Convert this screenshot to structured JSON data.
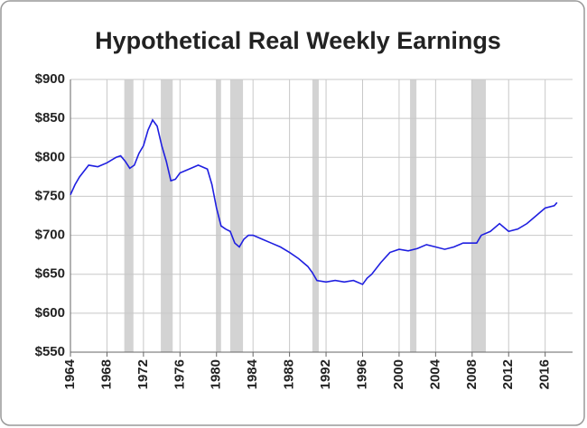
{
  "chart_data": {
    "type": "line",
    "title": "Hypothetical Real Weekly Earnings",
    "x": [
      1964,
      1964.5,
      1965,
      1966,
      1967,
      1968,
      1969,
      1969.5,
      1970,
      1970.5,
      1971,
      1971.5,
      1972,
      1972.5,
      1973,
      1973.5,
      1974,
      1974.5,
      1975,
      1975.5,
      1976,
      1977,
      1978,
      1979,
      1979.5,
      1980,
      1980.5,
      1981,
      1981.5,
      1982,
      1982.5,
      1983,
      1983.5,
      1984,
      1985,
      1986,
      1987,
      1988,
      1989,
      1990,
      1990.5,
      1991,
      1992,
      1993,
      1994,
      1995,
      1996,
      1996.5,
      1997,
      1998,
      1999,
      2000,
      2001,
      2002,
      2003,
      2004,
      2005,
      2006,
      2007,
      2008,
      2008.5,
      2009,
      2010,
      2011,
      2012,
      2013,
      2014,
      2015,
      2016,
      2017,
      2017.3
    ],
    "series": [
      {
        "color": "#1f1fe0",
        "values": [
          752,
          765,
          775,
          790,
          788,
          793,
          800,
          802,
          795,
          786,
          790,
          805,
          815,
          835,
          848,
          840,
          815,
          795,
          770,
          772,
          780,
          785,
          790,
          785,
          765,
          735,
          712,
          708,
          705,
          690,
          685,
          695,
          700,
          700,
          695,
          690,
          685,
          678,
          670,
          660,
          652,
          642,
          640,
          642,
          640,
          642,
          637,
          645,
          650,
          665,
          678,
          682,
          680,
          683,
          688,
          685,
          682,
          685,
          690,
          690,
          690,
          700,
          705,
          715,
          705,
          708,
          715,
          725,
          735,
          738,
          742
        ]
      }
    ],
    "shaded_periods": [
      [
        1969.9,
        1970.9
      ],
      [
        1973.9,
        1975.2
      ],
      [
        1980.0,
        1980.5
      ],
      [
        1981.5,
        1982.9
      ],
      [
        1990.5,
        1991.2
      ],
      [
        2001.2,
        2001.9
      ],
      [
        2007.9,
        2009.5
      ]
    ],
    "shade_color": "#d3d3d3",
    "xlim": [
      1964,
      2019
    ],
    "xticks": [
      1964,
      1968,
      1972,
      1976,
      1980,
      1984,
      1988,
      1992,
      1996,
      2000,
      2004,
      2008,
      2012,
      2016
    ],
    "ylim": [
      550,
      900
    ],
    "yticks": [
      {
        "value": 550,
        "label": "$550"
      },
      {
        "value": 600,
        "label": "$600"
      },
      {
        "value": 650,
        "label": "$650"
      },
      {
        "value": 700,
        "label": "$700"
      },
      {
        "value": 750,
        "label": "$750"
      },
      {
        "value": 800,
        "label": "$800"
      },
      {
        "value": 850,
        "label": "$850"
      },
      {
        "value": 900,
        "label": "$900"
      }
    ],
    "grid": true
  }
}
